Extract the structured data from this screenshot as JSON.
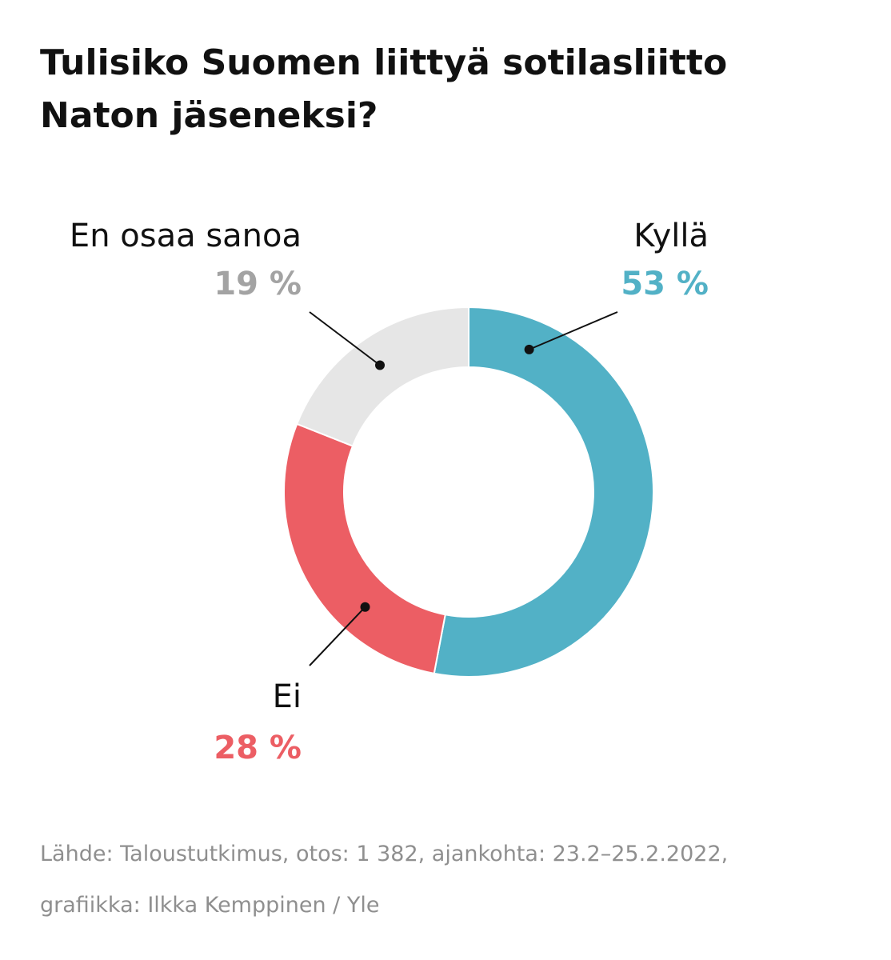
{
  "title": "Tulisiko Suomen liittyä sotilasliitto Naton jäseneksi?",
  "chart_data": {
    "type": "pie",
    "subtype": "donut",
    "slices": [
      {
        "label": "Kyllä",
        "value": 53,
        "value_label": "53 %",
        "color": "#52b1c6"
      },
      {
        "label": "Ei",
        "value": 28,
        "value_label": "28 %",
        "color": "#ec5e64"
      },
      {
        "label": "En osaa sanoa",
        "value": 19,
        "value_label": "19 %",
        "color": "#e6e6e6",
        "text_color": "#a3a3a3"
      }
    ]
  },
  "source": {
    "line1": "Lähde: Taloustutkimus, otos: 1 382, ajankohta: 23.2–25.2.2022,",
    "line2": "grafiikka: Ilkka Kemppinen / Yle"
  }
}
